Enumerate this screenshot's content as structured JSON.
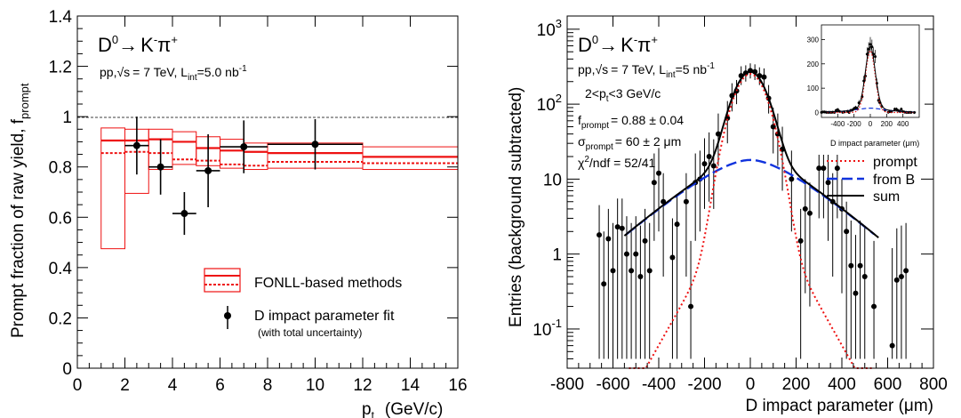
{
  "chart_data": [
    {
      "type": "bar",
      "process": "D0 → K-π+",
      "process_parts": {
        "base": "D",
        "base_sup": "0",
        "arrow": "→",
        "k": "K",
        "k_sup": "-",
        "pi": "π",
        "pi_sup": "+"
      },
      "conditions": {
        "prefix": "pp,",
        "sqrt": "√s",
        "energy": "= 7 TeV, L",
        "lumi_sub": "int",
        "lumi": "=5.0 nb",
        "lumi_sup": "-1"
      },
      "ylabel": {
        "main": "Prompt fraction of raw yield, f",
        "sub": "prompt"
      },
      "xlabel": {
        "main": "p",
        "sub": "t",
        "unit": "(GeV/c)"
      },
      "xlim": [
        0,
        16
      ],
      "ylim": [
        0,
        1.4
      ],
      "xticks": [
        0,
        2,
        4,
        6,
        8,
        10,
        12,
        14,
        16
      ],
      "yticks": [
        0,
        0.2,
        0.4,
        0.6,
        0.8,
        1,
        1.2,
        1.4
      ],
      "reference_line": 1.0,
      "fonll_bins": [
        {
          "xlo": 1,
          "xhi": 2,
          "central": 0.905,
          "lo": 0.475,
          "hi": 0.955,
          "min_method": 0.855
        },
        {
          "xlo": 2,
          "xhi": 3,
          "central": 0.905,
          "lo": 0.695,
          "hi": 0.95,
          "min_method": 0.86
        },
        {
          "xlo": 3,
          "xhi": 4,
          "central": 0.91,
          "lo": 0.79,
          "hi": 0.95,
          "min_method": 0.855
        },
        {
          "xlo": 4,
          "xhi": 5,
          "central": 0.9,
          "lo": 0.81,
          "hi": 0.94,
          "min_method": 0.83
        },
        {
          "xlo": 5,
          "xhi": 6,
          "central": 0.875,
          "lo": 0.805,
          "hi": 0.92,
          "min_method": 0.825
        },
        {
          "xlo": 6,
          "xhi": 7,
          "central": 0.865,
          "lo": 0.795,
          "hi": 0.91,
          "min_method": 0.81
        },
        {
          "xlo": 7,
          "xhi": 8,
          "central": 0.86,
          "lo": 0.79,
          "hi": 0.895,
          "min_method": 0.805
        },
        {
          "xlo": 8,
          "xhi": 12,
          "central": 0.855,
          "lo": 0.795,
          "hi": 0.895,
          "min_method": 0.82
        },
        {
          "xlo": 12,
          "xhi": 16,
          "central": 0.84,
          "lo": 0.79,
          "hi": 0.88,
          "min_method": 0.815
        }
      ],
      "fit_points": [
        {
          "x": 2.5,
          "xerr": 0.5,
          "y": 0.885,
          "yerr": 0.115
        },
        {
          "x": 3.5,
          "xerr": 0.5,
          "y": 0.8,
          "yerr": 0.11
        },
        {
          "x": 4.5,
          "xerr": 0.5,
          "y": 0.615,
          "yerr": 0.085
        },
        {
          "x": 5.5,
          "xerr": 0.5,
          "y": 0.785,
          "yerr": 0.145
        },
        {
          "x": 7.0,
          "xerr": 1.0,
          "y": 0.88,
          "yerr": 0.105
        },
        {
          "x": 10.0,
          "xerr": 2.0,
          "y": 0.89,
          "yerr": 0.1
        }
      ],
      "legend": {
        "entries": [
          "FONLL-based methods",
          "D impact parameter fit",
          "(with total uncertainty)"
        ],
        "placement": "bottom-right"
      },
      "colors": {
        "fonll": "#ee1111",
        "fit": "#000000",
        "reference": "#000000"
      }
    },
    {
      "type": "scatter",
      "process_parts": {
        "base": "D",
        "base_sup": "0",
        "arrow": "→",
        "k": "K",
        "k_sup": "-",
        "pi": "π",
        "pi_sup": "+"
      },
      "conditions": {
        "prefix": "pp,",
        "sqrt": "√s",
        "energy": "= 7 TeV, L",
        "lumi_sub": "int",
        "lumi": "=5 nb",
        "lumi_sup": "-1"
      },
      "pt_range": {
        "prefix": "2<p",
        "sub": "t",
        "suffix": "<3 GeV/c"
      },
      "fit_results": {
        "f_prompt": {
          "sym": "f",
          "sub": "prompt",
          "val": "= 0.88 ± 0.04"
        },
        "sigma_prompt": {
          "sym": "σ",
          "sub": "prompt",
          "val": "= 60 ± 2 μm"
        },
        "chi2": {
          "sym": "χ",
          "sup": "2",
          "val": "/ndf = 52/41"
        }
      },
      "ylabel": "Entries (background subtracted)",
      "xlabel": "D impact parameter (μm)",
      "xlim": [
        -800,
        800
      ],
      "ylim": [
        0.03,
        1500
      ],
      "yscale": "log",
      "xticks": [
        -800,
        -600,
        -400,
        -200,
        0,
        200,
        400,
        600,
        800
      ],
      "yticks_major": [
        0.1,
        1,
        10,
        100,
        1000
      ],
      "ytick_labels": [
        {
          "base": "10",
          "exp": "-1"
        },
        {
          "base": "1",
          "exp": ""
        },
        {
          "base": "10",
          "exp": ""
        },
        {
          "base": "10",
          "exp": "2"
        },
        {
          "base": "10",
          "exp": "3"
        }
      ],
      "points": [
        {
          "x": -660,
          "y": 1.8,
          "lo": 0.04,
          "hi": 4.5
        },
        {
          "x": -640,
          "y": 0.4,
          "lo": 0.04,
          "hi": 2.0
        },
        {
          "x": -620,
          "y": 1.6,
          "lo": 0.04,
          "hi": 4.0
        },
        {
          "x": -600,
          "y": 0.6,
          "lo": 0.04,
          "hi": 2.6
        },
        {
          "x": -580,
          "y": 2.3,
          "lo": 0.04,
          "hi": 5.5
        },
        {
          "x": -560,
          "y": 2.2,
          "lo": 0.04,
          "hi": 5.5
        },
        {
          "x": -540,
          "y": 1.0,
          "lo": 0.04,
          "hi": 3.2
        },
        {
          "x": -520,
          "y": 0.6,
          "lo": 0.04,
          "hi": 2.6
        },
        {
          "x": -500,
          "y": 1.0,
          "lo": 0.04,
          "hi": 3.2
        },
        {
          "x": -480,
          "y": 0.5,
          "lo": 0.04,
          "hi": 2.4
        },
        {
          "x": -460,
          "y": 1.5,
          "lo": 0.04,
          "hi": 4.0
        },
        {
          "x": -440,
          "y": 0.6,
          "lo": 0.04,
          "hi": 2.6
        },
        {
          "x": -420,
          "y": 9.0,
          "lo": 1.5,
          "hi": 22.0
        },
        {
          "x": -400,
          "y": 12.0,
          "lo": 2.0,
          "hi": 26.0
        },
        {
          "x": -380,
          "y": 5.0,
          "lo": 0.5,
          "hi": 12.0
        },
        {
          "x": -340,
          "y": 0.9,
          "lo": 0.04,
          "hi": 3.0
        },
        {
          "x": -320,
          "y": 2.5,
          "lo": 0.04,
          "hi": 6.0
        },
        {
          "x": -280,
          "y": 5.0,
          "lo": 0.5,
          "hi": 12.0
        },
        {
          "x": -260,
          "y": 0.2,
          "lo": 0.04,
          "hi": 1.5
        },
        {
          "x": -240,
          "y": 9.0,
          "lo": 1.5,
          "hi": 22.0
        },
        {
          "x": -220,
          "y": 10.0,
          "lo": 2.0,
          "hi": 24.0
        },
        {
          "x": -200,
          "y": 16.0,
          "lo": 4.0,
          "hi": 35.0
        },
        {
          "x": -180,
          "y": 20.0,
          "lo": 5.0,
          "hi": 42.0
        },
        {
          "x": -160,
          "y": 15.0,
          "lo": 4.0,
          "hi": 34.0
        },
        {
          "x": -140,
          "y": 40.0,
          "lo": 15.0,
          "hi": 75.0
        },
        {
          "x": -100,
          "y": 65.0,
          "lo": 30.0,
          "hi": 110.0
        },
        {
          "x": -80,
          "y": 130.0,
          "lo": 80.0,
          "hi": 190.0
        },
        {
          "x": -60,
          "y": 150.0,
          "lo": 100.0,
          "hi": 210.0
        },
        {
          "x": -40,
          "y": 240.0,
          "lo": 180.0,
          "hi": 320.0
        },
        {
          "x": -20,
          "y": 260.0,
          "lo": 200.0,
          "hi": 330.0
        },
        {
          "x": 0,
          "y": 280.0,
          "lo": 220.0,
          "hi": 350.0
        },
        {
          "x": 20,
          "y": 270.0,
          "lo": 210.0,
          "hi": 340.0
        },
        {
          "x": 40,
          "y": 240.0,
          "lo": 180.0,
          "hi": 310.0
        },
        {
          "x": 60,
          "y": 230.0,
          "lo": 170.0,
          "hi": 300.0
        },
        {
          "x": 80,
          "y": 120.0,
          "lo": 75.0,
          "hi": 180.0
        },
        {
          "x": 100,
          "y": 50.0,
          "lo": 22.0,
          "hi": 90.0
        },
        {
          "x": 120,
          "y": 40.0,
          "lo": 15.0,
          "hi": 75.0
        },
        {
          "x": 140,
          "y": 25.0,
          "lo": 7.0,
          "hi": 50.0
        },
        {
          "x": 180,
          "y": 10.0,
          "lo": 2.0,
          "hi": 24.0
        },
        {
          "x": 220,
          "y": 1.5,
          "lo": 0.04,
          "hi": 4.0
        },
        {
          "x": 240,
          "y": 4.0,
          "lo": 0.3,
          "hi": 10.0
        },
        {
          "x": 260,
          "y": 3.5,
          "lo": 0.2,
          "hi": 9.0
        },
        {
          "x": 300,
          "y": 14.0,
          "lo": 3.0,
          "hi": 30.0
        },
        {
          "x": 320,
          "y": 14.0,
          "lo": 3.0,
          "hi": 30.0
        },
        {
          "x": 340,
          "y": 9.0,
          "lo": 1.5,
          "hi": 22.0
        },
        {
          "x": 360,
          "y": 5.0,
          "lo": 0.5,
          "hi": 12.0
        },
        {
          "x": 380,
          "y": 14.0,
          "lo": 3.0,
          "hi": 30.0
        },
        {
          "x": 400,
          "y": 4.0,
          "lo": 0.3,
          "hi": 10.0
        },
        {
          "x": 420,
          "y": 2.0,
          "lo": 0.04,
          "hi": 5.0
        },
        {
          "x": 440,
          "y": 0.7,
          "lo": 0.04,
          "hi": 2.8
        },
        {
          "x": 460,
          "y": 0.3,
          "lo": 0.04,
          "hi": 1.8
        },
        {
          "x": 480,
          "y": 0.7,
          "lo": 0.04,
          "hi": 2.8
        },
        {
          "x": 500,
          "y": 0.5,
          "lo": 0.04,
          "hi": 2.4
        },
        {
          "x": 540,
          "y": 0.2,
          "lo": 0.04,
          "hi": 1.5
        },
        {
          "x": 620,
          "y": 0.06,
          "lo": 0.04,
          "hi": 1.2
        },
        {
          "x": 640,
          "y": 0.45,
          "lo": 0.04,
          "hi": 2.2
        },
        {
          "x": 660,
          "y": 0.5,
          "lo": 0.04,
          "hi": 2.4
        },
        {
          "x": 680,
          "y": 0.6,
          "lo": 0.04,
          "hi": 2.6
        }
      ],
      "curves": {
        "prompt": {
          "amp": 245,
          "sigma": 60,
          "tail_amp": 9.0,
          "tail_sigma": 80,
          "xmin": -530,
          "xmax": 530,
          "color": "#ee1111",
          "dash": "dotted"
        },
        "from_b": {
          "amp": 18,
          "slope": 140,
          "xmin": -540,
          "xmax": 540,
          "color": "#1133dd",
          "dash": "dashed"
        },
        "sum": {
          "xmin": -550,
          "xmax": 560,
          "color": "#000000",
          "dash": "solid"
        }
      },
      "legend": {
        "entries": [
          "prompt",
          "from B",
          "sum"
        ],
        "placement": "right"
      },
      "inset": {
        "xlabel": "D impact parameter (μm)",
        "xticks": [
          -400,
          -200,
          0,
          200,
          400
        ],
        "yticks": [
          0,
          100,
          200,
          300
        ],
        "xlim": [
          -600,
          600
        ],
        "ylim": [
          -20,
          360
        ]
      }
    }
  ]
}
